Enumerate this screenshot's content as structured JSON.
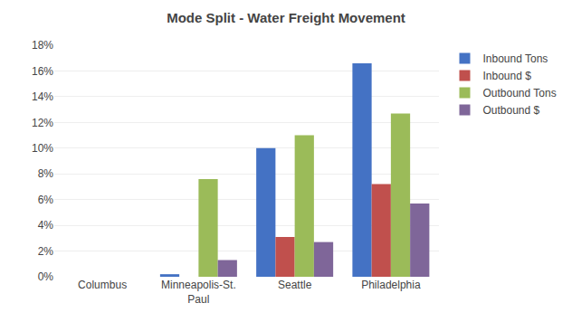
{
  "chart_data": {
    "type": "bar",
    "title": "Mode Split - Water Freight Movement",
    "categories": [
      "Columbus",
      "Minneapolis-St.\nPaul",
      "Seattle",
      "Philadelphia"
    ],
    "series": [
      {
        "name": "Inbound Tons",
        "color": "#4472C4",
        "values": [
          0.0,
          0.002,
          0.1,
          0.166
        ]
      },
      {
        "name": "Inbound $",
        "color": "#C0504D",
        "values": [
          0.0,
          0.0,
          0.031,
          0.072
        ]
      },
      {
        "name": "Outbound Tons",
        "color": "#9BBB59",
        "values": [
          0.0,
          0.076,
          0.11,
          0.127
        ]
      },
      {
        "name": "Outbound $",
        "color": "#7F6699",
        "values": [
          0.0,
          0.013,
          0.027,
          0.057
        ]
      }
    ],
    "ylim": [
      0,
      0.18
    ],
    "yticks": [
      {
        "value": 0.0,
        "label": "0%"
      },
      {
        "value": 0.02,
        "label": "2%"
      },
      {
        "value": 0.04,
        "label": "4%"
      },
      {
        "value": 0.06,
        "label": "6%"
      },
      {
        "value": 0.08,
        "label": "8%"
      },
      {
        "value": 0.1,
        "label": "10%"
      },
      {
        "value": 0.12,
        "label": "12%"
      },
      {
        "value": 0.14,
        "label": "14%"
      },
      {
        "value": 0.16,
        "label": "16%"
      },
      {
        "value": 0.18,
        "label": "18%"
      }
    ],
    "grid": true,
    "legend": "right"
  }
}
